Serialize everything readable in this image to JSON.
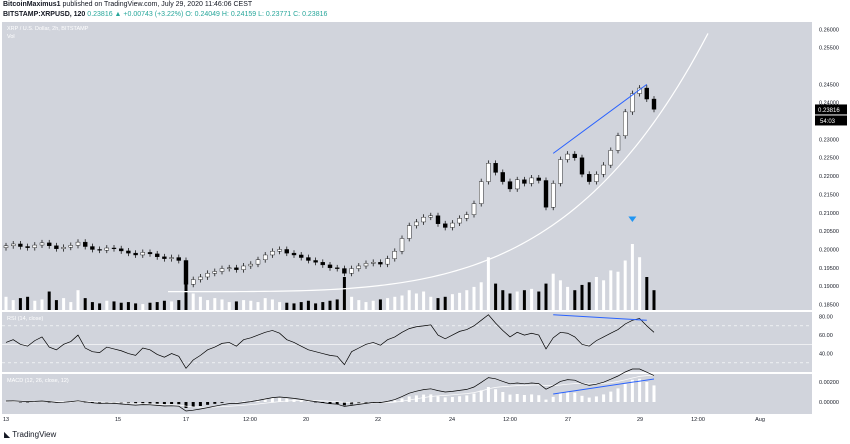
{
  "header": {
    "author": "BitcoinMaximus1",
    "published": "published on TradingView.com, July 29, 2020 11:46:06 CEST",
    "symbol": "BITSTAMP:XRPUSD, 120",
    "change": "0.23816 ▲ +0.00743 (+3.22%)",
    "ohlc": "O: 0.24049  H: 0.24159  L: 0.23771  C: 0.23816"
  },
  "footer": {
    "brand": "TradingView"
  },
  "colors": {
    "background": "#d1d4dc",
    "candle_up": "#ffffff",
    "candle_down": "#000000",
    "trendline": "#2962ff",
    "curve": "#ffffff",
    "accent": "#2196f3"
  },
  "chart_data": [
    {
      "type": "candlestick",
      "title": "XRP / U.S. Dollar, 2h, BITSTAMP",
      "legend": [
        "Vol"
      ],
      "y_ticks": [
        "0.26000",
        "0.25500",
        "0.24500",
        "0.24000",
        "0.23500",
        "0.23000",
        "0.22500",
        "0.22000",
        "0.21500",
        "0.21000",
        "0.20500",
        "0.20000",
        "0.19500",
        "0.19000",
        "0.18500"
      ],
      "ylim": [
        0.1835,
        0.262
      ],
      "x_ticks": [
        "13",
        "15",
        "17",
        "12:00",
        "20",
        "22",
        "24",
        "12:00",
        "27",
        "29",
        "12:00",
        "Aug"
      ],
      "last_price": "0.23816",
      "countdown": "54:03",
      "close_series": [
        0.201,
        0.2015,
        0.2008,
        0.2005,
        0.2012,
        0.2018,
        0.201,
        0.2002,
        0.2006,
        0.2011,
        0.202,
        0.2008,
        0.2,
        0.1998,
        0.2004,
        0.2002,
        0.1996,
        0.199,
        0.1985,
        0.1992,
        0.1988,
        0.198,
        0.1975,
        0.1978,
        0.197,
        0.1905,
        0.1918,
        0.1925,
        0.1935,
        0.194,
        0.1948,
        0.195,
        0.1945,
        0.1955,
        0.196,
        0.1972,
        0.1985,
        0.1995,
        0.2,
        0.199,
        0.1985,
        0.1978,
        0.197,
        0.1965,
        0.1958,
        0.195,
        0.1948,
        0.1935,
        0.1948,
        0.1955,
        0.1962,
        0.1965,
        0.196,
        0.1975,
        0.1995,
        0.203,
        0.2065,
        0.2075,
        0.2088,
        0.2092,
        0.207,
        0.206,
        0.2072,
        0.2085,
        0.2095,
        0.2125,
        0.2185,
        0.2235,
        0.221,
        0.2185,
        0.2165,
        0.219,
        0.218,
        0.2195,
        0.2188,
        0.2115,
        0.218,
        0.2245,
        0.226,
        0.225,
        0.2205,
        0.2185,
        0.2205,
        0.223,
        0.227,
        0.231,
        0.2375,
        0.2425,
        0.244,
        0.241,
        0.2382
      ],
      "volume_relative": [
        0.2,
        0.15,
        0.18,
        0.2,
        0.14,
        0.16,
        0.28,
        0.15,
        0.18,
        0.12,
        0.3,
        0.18,
        0.12,
        0.1,
        0.14,
        0.13,
        0.11,
        0.12,
        0.1,
        0.09,
        0.11,
        0.12,
        0.14,
        0.13,
        0.15,
        0.6,
        0.25,
        0.2,
        0.15,
        0.18,
        0.16,
        0.12,
        0.13,
        0.15,
        0.14,
        0.12,
        0.18,
        0.16,
        0.12,
        0.11,
        0.1,
        0.12,
        0.14,
        0.1,
        0.12,
        0.14,
        0.16,
        0.5,
        0.2,
        0.15,
        0.12,
        0.14,
        0.16,
        0.18,
        0.2,
        0.22,
        0.3,
        0.25,
        0.28,
        0.2,
        0.18,
        0.2,
        0.24,
        0.26,
        0.3,
        0.35,
        0.42,
        0.8,
        0.4,
        0.3,
        0.25,
        0.28,
        0.3,
        0.32,
        0.28,
        0.4,
        0.55,
        0.45,
        0.35,
        0.3,
        0.38,
        0.42,
        0.5,
        0.45,
        0.6,
        0.58,
        0.75,
        1.0,
        0.8,
        0.5,
        0.3
      ]
    },
    {
      "type": "line",
      "title": "RSI (14, close)",
      "y_ticks": [
        "80.00",
        "60.00",
        "40.00"
      ],
      "ylim": [
        20,
        85
      ],
      "bands": [
        70,
        50,
        30
      ],
      "values": [
        52,
        55,
        50,
        48,
        54,
        58,
        47,
        44,
        50,
        53,
        60,
        46,
        42,
        41,
        47,
        45,
        43,
        40,
        38,
        46,
        44,
        39,
        36,
        40,
        37,
        24,
        33,
        38,
        44,
        47,
        51,
        52,
        48,
        55,
        57,
        60,
        63,
        65,
        62,
        55,
        52,
        48,
        44,
        42,
        40,
        38,
        37,
        28,
        42,
        46,
        50,
        52,
        49,
        55,
        58,
        63,
        67,
        69,
        70,
        71,
        60,
        56,
        60,
        64,
        66,
        70,
        76,
        82,
        73,
        65,
        58,
        63,
        60,
        62,
        60,
        45,
        57,
        63,
        62,
        58,
        50,
        48,
        54,
        58,
        62,
        66,
        72,
        76,
        78,
        70,
        63
      ]
    },
    {
      "type": "bar",
      "title": "MACD (12, 26, close, 12)",
      "y_ticks": [
        "0.00200",
        "0.00000"
      ],
      "ylim": [
        -0.0012,
        0.0028
      ],
      "histogram": [
        2e-05,
        4e-05,
        -2e-05,
        -4e-05,
        1e-05,
        3e-05,
        -3e-05,
        -6e-05,
        -4e-05,
        0.0,
        4e-05,
        -2e-05,
        -7e-05,
        -0.0001,
        -8e-05,
        -9e-05,
        -0.00012,
        -0.00015,
        -0.00018,
        -0.00014,
        -0.00015,
        -0.00019,
        -0.00022,
        -0.0002,
        -0.00022,
        -0.0006,
        -0.0005,
        -0.0004,
        -0.00028,
        -0.00018,
        -8e-05,
        2e-05,
        0.0,
        8e-05,
        0.00014,
        0.00022,
        0.00032,
        0.0004,
        0.00042,
        0.00034,
        0.00026,
        0.00016,
        6e-05,
        -2e-05,
        -0.0001,
        -0.00016,
        -0.0002,
        -0.00034,
        -0.00024,
        -0.00016,
        -8e-05,
        0.0,
        -2e-05,
        6e-05,
        0.00018,
        0.00036,
        0.00056,
        0.00066,
        0.00074,
        0.00076,
        0.00058,
        0.00046,
        0.0005,
        0.00058,
        0.00066,
        0.00084,
        0.00116,
        0.0015,
        0.00128,
        0.001,
        0.00074,
        0.0008,
        0.0007,
        0.00076,
        0.00068,
        0.00024,
        0.00052,
        0.0009,
        0.00104,
        0.00094,
        0.00062,
        0.00044,
        0.00056,
        0.00076,
        0.00104,
        0.00136,
        0.0018,
        0.00222,
        0.00232,
        0.002,
        0.00166
      ],
      "macd_line": [
        0.0001,
        0.00012,
        8e-05,
        4e-05,
        6e-05,
        0.0001,
        4e-05,
        -4e-05,
        -2e-05,
        4e-05,
        0.00012,
        2e-05,
        -8e-05,
        -0.00014,
        -0.00012,
        -0.00014,
        -0.0002,
        -0.00026,
        -0.00032,
        -0.00026,
        -0.00028,
        -0.00034,
        -0.0004,
        -0.00038,
        -0.00042,
        -0.0009,
        -0.00082,
        -0.0007,
        -0.00056,
        -0.00042,
        -0.00028,
        -0.00016,
        -0.00016,
        -6e-05,
        4e-05,
        0.00016,
        0.0003,
        0.00044,
        0.0005,
        0.00044,
        0.00036,
        0.00026,
        0.00014,
        4e-05,
        -6e-05,
        -0.00016,
        -0.00022,
        -0.00044,
        -0.00034,
        -0.00024,
        -0.00014,
        -4e-05,
        -6e-05,
        6e-05,
        0.00024,
        0.00054,
        0.00088,
        0.00108,
        0.00124,
        0.00132,
        0.00114,
        0.001,
        0.00106,
        0.00116,
        0.00126,
        0.0015,
        0.00196,
        0.00244,
        0.00232,
        0.00206,
        0.00182,
        0.0019,
        0.00182,
        0.0019,
        0.00184,
        0.00128,
        0.00162,
        0.00206,
        0.00224,
        0.00218,
        0.00186,
        0.00166,
        0.00178,
        0.00198,
        0.00228,
        0.0026,
        0.003,
        0.0033,
        0.0033,
        0.00298,
        0.00264
      ],
      "signal_line": [
        8e-05,
        9e-05,
        9e-05,
        8e-05,
        7e-05,
        8e-05,
        7e-05,
        5e-05,
        4e-05,
        4e-05,
        6e-05,
        5e-05,
        3e-05,
        0.0,
        -2e-05,
        -4e-05,
        -7e-05,
        -0.0001,
        -0.00014,
        -0.00016,
        -0.00018,
        -0.00021,
        -0.00025,
        -0.00027,
        -0.0003,
        -0.00041,
        -0.00048,
        -0.00051,
        -0.00052,
        -0.0005,
        -0.00047,
        -0.00043,
        -0.00038,
        -0.00033,
        -0.00027,
        -0.0002,
        -0.00012,
        -4e-05,
        4e-05,
        0.0001,
        0.00014,
        0.00016,
        0.00016,
        0.00014,
        0.00011,
        7e-05,
        3e-05,
        -4e-05,
        -8e-05,
        -0.0001,
        -0.0001,
        -9e-05,
        -8e-05,
        -6e-05,
        -1e-05,
        8e-05,
        0.0002,
        0.00032,
        0.00044,
        0.00055,
        0.00062,
        0.00066,
        0.00072,
        0.00078,
        0.00084,
        0.00094,
        0.0011,
        0.00132,
        0.00146,
        0.00154,
        0.00158,
        0.00164,
        0.00166,
        0.0017,
        0.00172,
        0.00164,
        0.00164,
        0.0017,
        0.00178,
        0.00184,
        0.00184,
        0.00182,
        0.00182,
        0.00186,
        0.00194,
        0.00206,
        0.00222,
        0.0024,
        0.00256,
        0.00264,
        0.00264
      ]
    }
  ]
}
